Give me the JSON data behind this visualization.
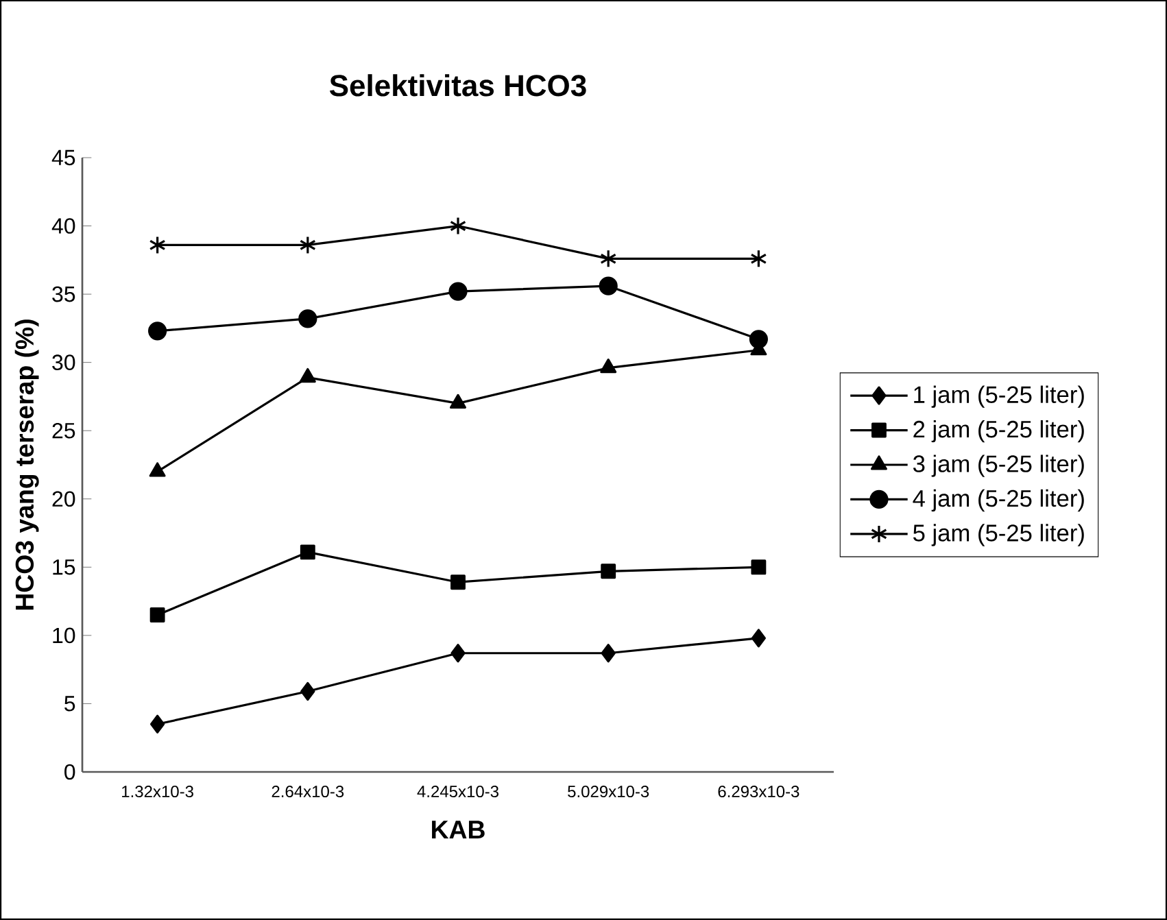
{
  "chart_data": {
    "type": "line",
    "title": "Selektivitas HCO3",
    "xlabel": "KAB",
    "ylabel": "HCO3 yang terserap (%)",
    "categories": [
      "1.32x10-3",
      "2.64x10-3",
      "4.245x10-3",
      "5.029x10-3",
      "6.293x10-3"
    ],
    "ylim": [
      0,
      45
    ],
    "yticks": [
      0,
      5,
      10,
      15,
      20,
      25,
      30,
      35,
      40,
      45
    ],
    "grid": false,
    "legend": "right",
    "line_style": "solid",
    "series": [
      {
        "name": "1 jam (5-25 liter)",
        "color": "#000000",
        "marker": "diamond",
        "values": [
          3.5,
          5.9,
          8.7,
          8.7,
          9.8
        ]
      },
      {
        "name": "2 jam (5-25 liter)",
        "color": "#000000",
        "marker": "square",
        "values": [
          11.5,
          16.1,
          13.9,
          14.7,
          15.0
        ]
      },
      {
        "name": "3 jam (5-25 liter)",
        "color": "#000000",
        "marker": "triangle",
        "values": [
          22.0,
          28.9,
          27.0,
          29.6,
          30.9
        ]
      },
      {
        "name": "4 jam (5-25 liter)",
        "color": "#000000",
        "marker": "circle",
        "values": [
          32.3,
          33.2,
          35.2,
          35.6,
          31.7
        ]
      },
      {
        "name": "5 jam (5-25 liter)",
        "color": "#000000",
        "marker": "cross",
        "values": [
          38.6,
          38.6,
          40.0,
          37.6,
          37.6
        ]
      }
    ]
  }
}
